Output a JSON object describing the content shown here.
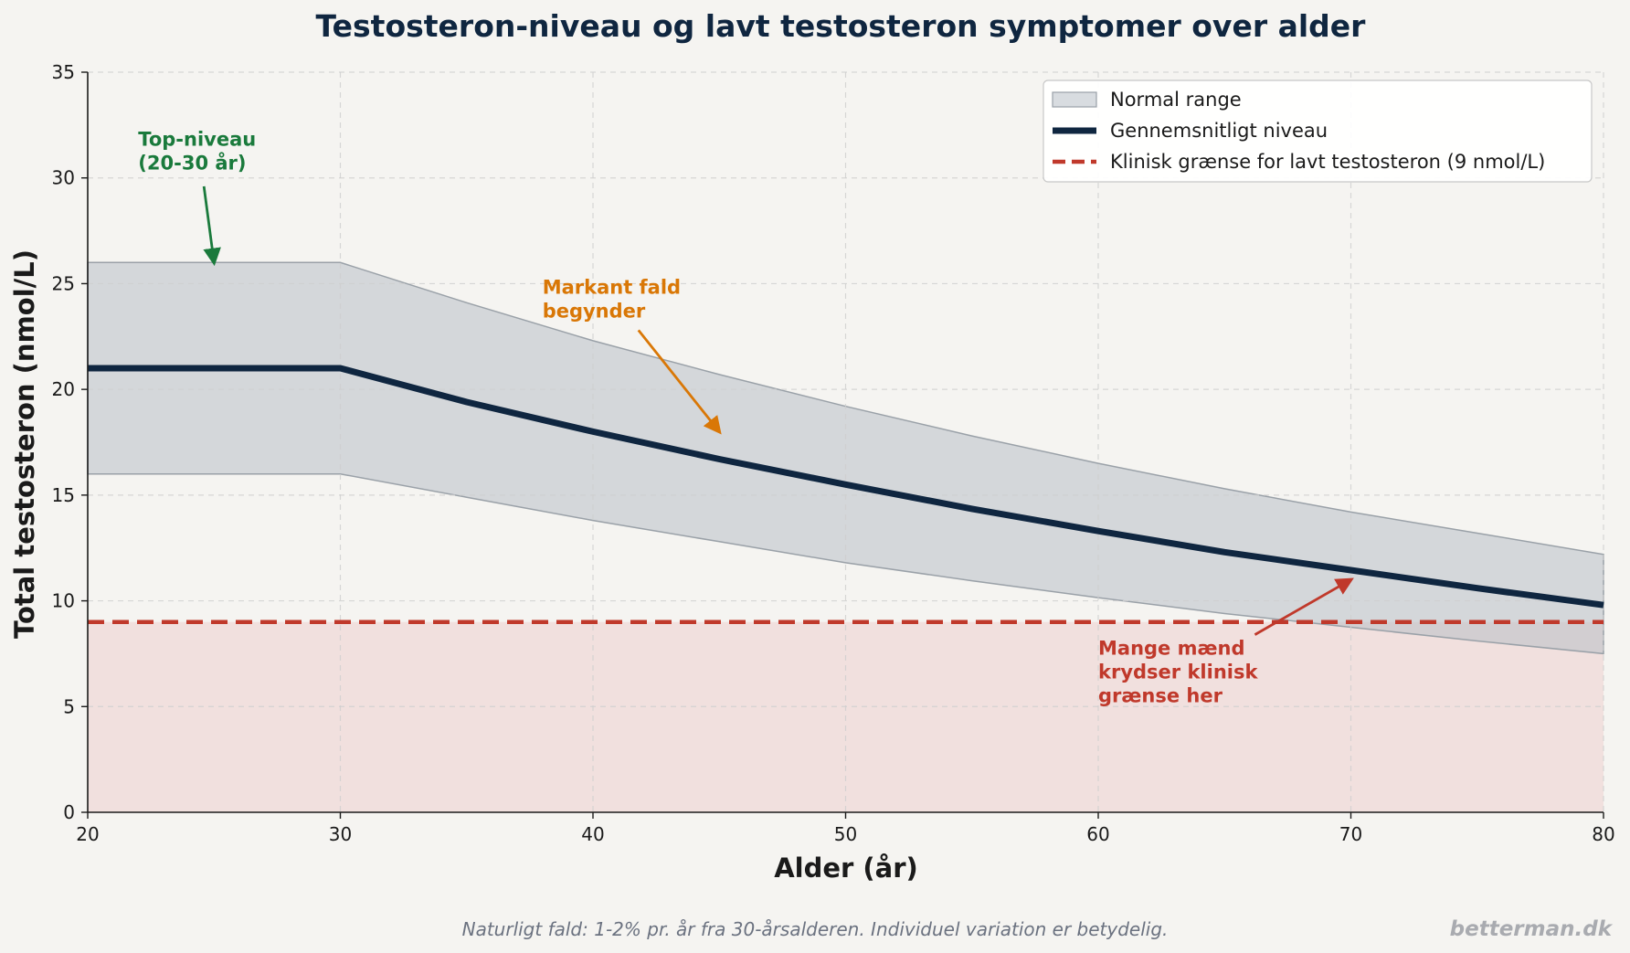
{
  "chart_data": {
    "type": "line",
    "title": "Testosteron-niveau og lavt testosteron symptomer over alder",
    "xlabel": "Alder (år)",
    "ylabel": "Total testosteron (nmol/L)",
    "xlim": [
      20,
      80
    ],
    "ylim": [
      0,
      35
    ],
    "xticks": [
      20,
      30,
      40,
      50,
      60,
      70,
      80
    ],
    "yticks": [
      0,
      5,
      10,
      15,
      20,
      25,
      30,
      35
    ],
    "grid": true,
    "legend_position": "top-right",
    "x": [
      20,
      25,
      30,
      35,
      40,
      45,
      50,
      55,
      60,
      65,
      70,
      75,
      80
    ],
    "series": [
      {
        "name": "Gennemsnitligt niveau",
        "kind": "line",
        "color": "#0f2640",
        "values": [
          21,
          21,
          21,
          19.4,
          18.0,
          16.7,
          15.5,
          14.35,
          13.3,
          12.3,
          11.45,
          10.6,
          9.8
        ]
      },
      {
        "name": "Normal range",
        "kind": "band",
        "color": "#b8bfc6",
        "upper": [
          26,
          26,
          26,
          24.1,
          22.3,
          20.7,
          19.2,
          17.8,
          16.5,
          15.3,
          14.2,
          13.2,
          12.2
        ],
        "lower": [
          16,
          16,
          16,
          14.9,
          13.8,
          12.8,
          11.8,
          10.95,
          10.15,
          9.4,
          8.75,
          8.1,
          7.5
        ]
      },
      {
        "name": "Klinisk grænse for lavt testosteron (9 nmol/L)",
        "kind": "hline",
        "color": "#c0392b",
        "value": 9
      }
    ],
    "annotations": [
      {
        "lines": [
          "Top-niveau",
          "(20-30 år)"
        ],
        "text_at": [
          22,
          30.4
        ],
        "arrow_to": [
          25,
          26
        ],
        "arrow_from": [
          24.6,
          29.6
        ],
        "color": "#1a7a3c"
      },
      {
        "lines": [
          "Markant fald",
          "begynder"
        ],
        "text_at": [
          38,
          23.4
        ],
        "arrow_to": [
          45,
          18
        ],
        "arrow_from": [
          41.8,
          22.8
        ],
        "color": "#d97706"
      },
      {
        "lines": [
          "Mange mænd",
          "krydser klinisk",
          "grænse her"
        ],
        "text_at": [
          60,
          5.2
        ],
        "arrow_to": [
          70,
          11
        ],
        "arrow_from": [
          66.2,
          8.4
        ],
        "color": "#c0392b"
      }
    ]
  },
  "footer": {
    "note": "Naturligt fald: 1-2% pr. år fra 30-årsalderen. Individuel variation er betydelig.",
    "brand": "betterman.dk"
  },
  "colors": {
    "background": "#f5f4f1",
    "low_zone_fill": "#f0dcdb",
    "band_fill": "#b8bfc6"
  }
}
